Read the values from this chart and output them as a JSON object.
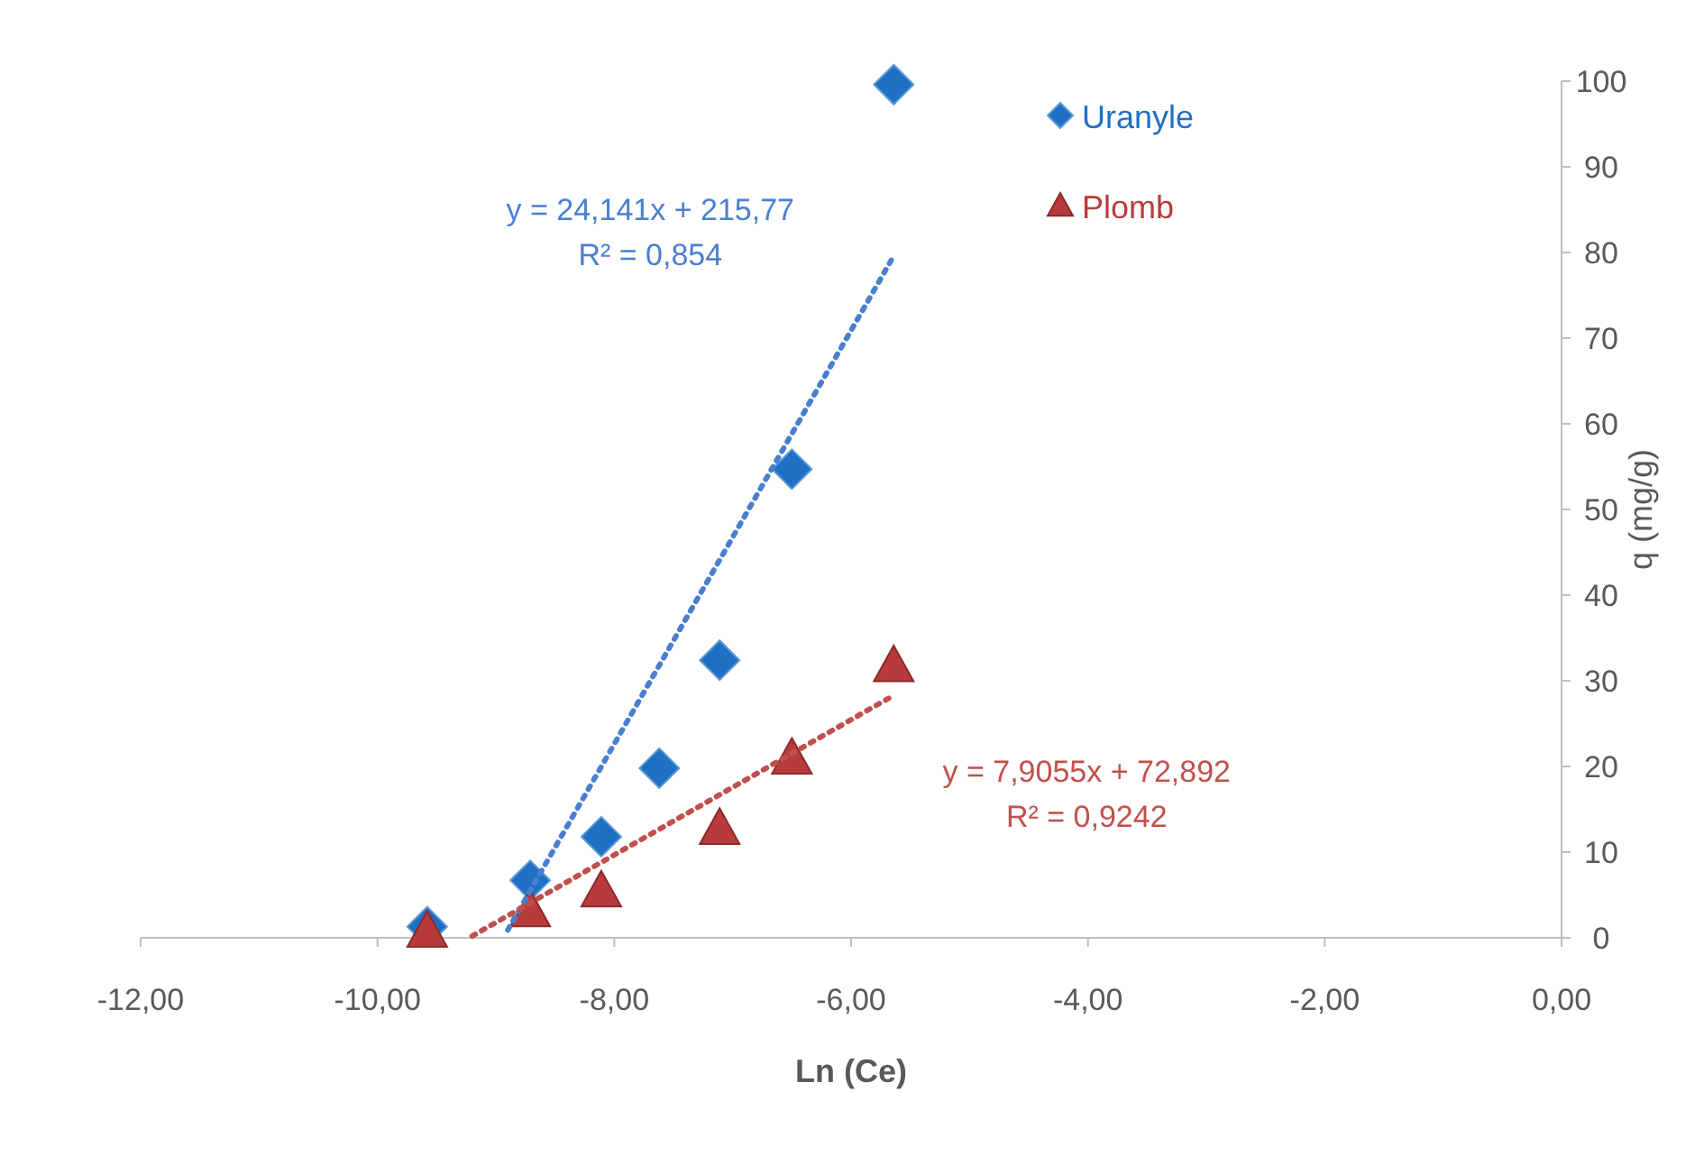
{
  "chart_data": {
    "type": "scatter",
    "xlabel": "Ln (Ce)",
    "ylabel": "q (mg/g)",
    "xlim": [
      -12,
      0
    ],
    "xticks": [
      {
        "value": -12,
        "label": "-12,00"
      },
      {
        "value": -10,
        "label": "-10,00"
      },
      {
        "value": -8,
        "label": "-8,00"
      },
      {
        "value": -6,
        "label": "-6,00"
      },
      {
        "value": -4,
        "label": "-4,00"
      },
      {
        "value": -2,
        "label": "-2,00"
      },
      {
        "value": 0,
        "label": "0,00"
      }
    ],
    "ylim": [
      0,
      100
    ],
    "yticks": [
      0,
      10,
      20,
      30,
      40,
      50,
      60,
      70,
      80,
      90,
      100
    ],
    "grid": false,
    "legend": "top right",
    "series": [
      {
        "name": "Uranyle",
        "marker": "diamond",
        "color": "#1f6fc5",
        "x": [
          -9.58,
          -8.71,
          -8.11,
          -7.62,
          -7.11,
          -6.5,
          -5.64
        ],
        "values": [
          1.3,
          6.7,
          11.8,
          19.8,
          32.4,
          54.7,
          99.6
        ]
      },
      {
        "name": "Plomb",
        "marker": "triangle",
        "color": "#b83b3b",
        "x": [
          -9.58,
          -8.71,
          -8.11,
          -7.11,
          -6.5,
          -5.64
        ],
        "values": [
          0.8,
          3.2,
          5.5,
          12.8,
          21,
          31.8
        ]
      },
      {
        "type": "line",
        "marker": "none",
        "line_style": "dotted",
        "color": "#4a7fcf",
        "x": [
          -8.9,
          -5.64
        ],
        "values": [
          0.9,
          79.6
        ]
      },
      {
        "type": "line",
        "marker": "none",
        "line_style": "dotted",
        "color": "#c0504d",
        "x": [
          -9.2,
          -5.64
        ],
        "values": [
          0.2,
          28.3
        ]
      }
    ],
    "annotations": [
      "y = 24,141x + 215,77",
      "R² = 0,854",
      "y = 7,9055x + 72,892",
      "R² = 0,9242"
    ]
  }
}
